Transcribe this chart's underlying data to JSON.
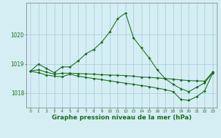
{
  "line1_x": [
    0,
    1,
    2,
    3,
    4,
    5,
    6,
    7,
    8,
    9,
    10,
    11,
    12,
    13,
    14,
    15,
    16,
    17,
    18,
    19,
    20,
    21,
    22,
    23
  ],
  "line1_y": [
    1018.75,
    1019.0,
    1018.85,
    1018.7,
    1018.9,
    1018.9,
    1019.1,
    1019.35,
    1019.5,
    1019.75,
    1020.1,
    1020.55,
    1020.75,
    1019.9,
    1019.55,
    1019.2,
    1018.8,
    1018.5,
    1018.3,
    1018.15,
    1018.05,
    1018.2,
    1018.35,
    1018.7
  ],
  "line2_x": [
    0,
    1,
    2,
    3,
    4,
    5,
    6,
    7,
    8,
    9,
    10,
    11,
    12,
    13,
    14,
    15,
    16,
    17,
    18,
    19,
    20,
    21,
    22,
    23
  ],
  "line2_y": [
    1018.75,
    1018.8,
    1018.72,
    1018.65,
    1018.68,
    1018.68,
    1018.67,
    1018.66,
    1018.65,
    1018.63,
    1018.62,
    1018.61,
    1018.6,
    1018.58,
    1018.55,
    1018.54,
    1018.52,
    1018.5,
    1018.48,
    1018.45,
    1018.43,
    1018.42,
    1018.41,
    1018.72
  ],
  "line3_x": [
    0,
    1,
    2,
    3,
    4,
    5,
    6,
    7,
    8,
    9,
    10,
    11,
    12,
    13,
    14,
    15,
    16,
    17,
    18,
    19,
    20,
    21,
    22,
    23
  ],
  "line3_y": [
    1018.75,
    1018.7,
    1018.62,
    1018.58,
    1018.56,
    1018.65,
    1018.58,
    1018.54,
    1018.5,
    1018.46,
    1018.42,
    1018.38,
    1018.34,
    1018.3,
    1018.26,
    1018.22,
    1018.17,
    1018.12,
    1018.05,
    1017.78,
    1017.75,
    1017.88,
    1018.08,
    1018.68
  ],
  "line_color": "#1a6b1a",
  "bg_color": "#d4eef4",
  "grid_color": "#a0c8d8",
  "xlabel": "Graphe pression niveau de la mer (hPa)",
  "xlabel_fontsize": 6.5,
  "marker": "D",
  "marker_size": 1.8,
  "linewidth": 0.8,
  "ylim": [
    1017.5,
    1021.1
  ],
  "xlim": [
    -0.5,
    23.5
  ],
  "yticks": [
    1018,
    1019,
    1020
  ],
  "xticks": [
    0,
    1,
    2,
    3,
    4,
    5,
    6,
    7,
    8,
    9,
    10,
    11,
    12,
    13,
    14,
    15,
    16,
    17,
    18,
    19,
    20,
    21,
    22,
    23
  ]
}
